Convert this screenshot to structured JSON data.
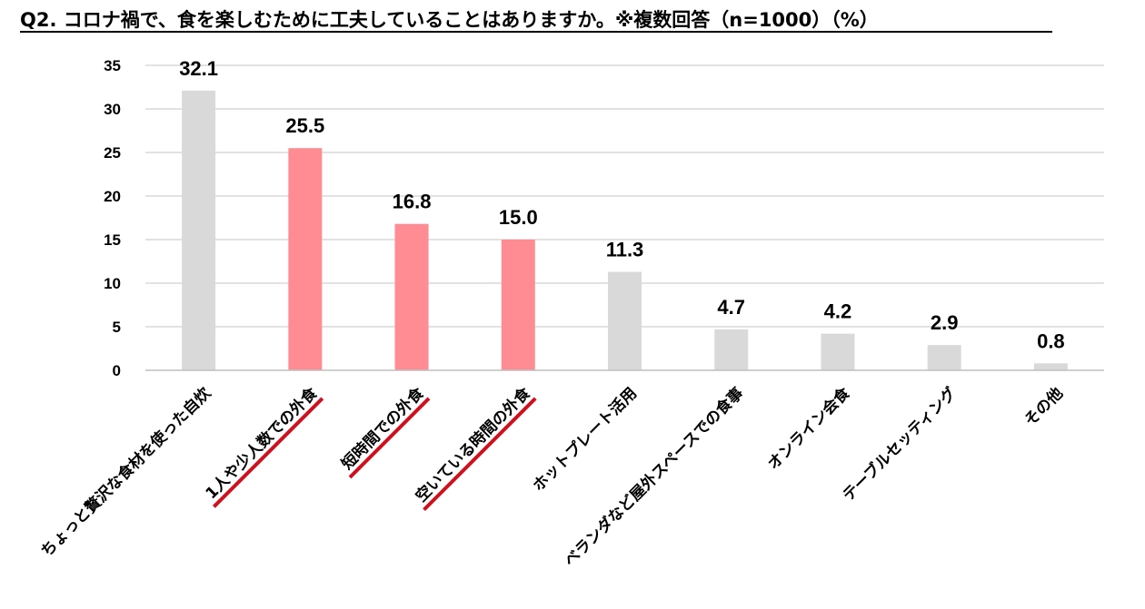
{
  "chart_data": {
    "type": "bar",
    "title": "Q2. コロナ禍で、食を楽しむために工夫していることはありますか。※複数回答（n=1000）（%）",
    "xlabel": "",
    "ylabel": "",
    "ylim": [
      0,
      35
    ],
    "yticks": [
      0,
      5,
      10,
      15,
      20,
      25,
      30,
      35
    ],
    "grid": true,
    "legend": "none",
    "categories": [
      "ちょっと贅沢な食材を使った自炊",
      "1人や少人数での外食",
      "短時間での外食",
      "空いている時間の外食",
      "ホットプレート活用",
      "ベランダなど屋外スペースでの食事",
      "オンライン会食",
      "テーブルセッティング",
      "その他"
    ],
    "values": [
      32.1,
      25.5,
      16.8,
      15.0,
      11.3,
      4.7,
      4.2,
      2.9,
      0.8
    ],
    "value_labels": [
      "32.1",
      "25.5",
      "16.8",
      "15.0",
      "11.3",
      "4.7",
      "4.2",
      "2.9",
      "0.8"
    ],
    "highlighted": [
      false,
      true,
      true,
      true,
      false,
      false,
      false,
      false,
      false
    ],
    "colors": {
      "default_bar": "#d9d9d9",
      "highlight_bar": "#ff8b93",
      "highlight_underline": "#d0101d",
      "gridline": "#d9d9d9",
      "axis": "#bfbfbf",
      "text": "#000000"
    }
  }
}
